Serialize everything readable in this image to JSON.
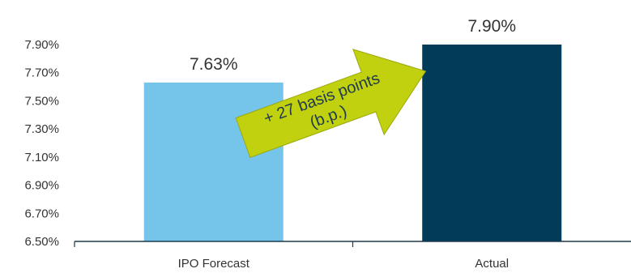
{
  "chart_data": {
    "type": "bar",
    "categories": [
      "IPO Forecast",
      "Actual"
    ],
    "values": [
      7.63,
      7.9
    ],
    "data_labels": [
      "7.63%",
      "7.90%"
    ],
    "title": "",
    "xlabel": "",
    "ylabel": "",
    "ylim": [
      6.5,
      7.9
    ],
    "yticks": [
      6.5,
      6.7,
      6.9,
      7.1,
      7.3,
      7.5,
      7.7,
      7.9
    ],
    "ytick_labels": [
      "6.50%",
      "6.70%",
      "6.90%",
      "7.10%",
      "7.30%",
      "7.50%",
      "7.70%",
      "7.90%"
    ],
    "grid": false,
    "colors": {
      "bar_forecast": "#75c5ea",
      "bar_actual": "#003b5a",
      "axis": "#1f3a4d",
      "arrow_fill": "#c1d10f",
      "arrow_stroke": "#9aa80a"
    },
    "annotation": {
      "line1": "+ 27 basis points",
      "line2": "(b.p.)"
    }
  }
}
